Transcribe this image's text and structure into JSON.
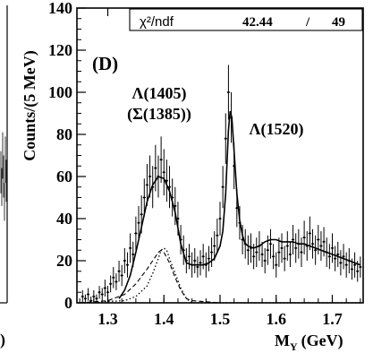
{
  "chart_data": {
    "type": "scatter",
    "panel_label": "(D)",
    "ylabel": "Counts/(5 MeV)",
    "xlabel": "M",
    "xlabel_sub": "Y",
    "xlabel_unit": "(GeV)",
    "xlim": [
      1.245,
      1.755
    ],
    "ylim": [
      0,
      140
    ],
    "x_ticks": [
      {
        "value": 1.3,
        "label": "1.3"
      },
      {
        "value": 1.4,
        "label": "1.4"
      },
      {
        "value": 1.5,
        "label": "1.5"
      },
      {
        "value": 1.6,
        "label": "1.6"
      },
      {
        "value": 1.7,
        "label": "1.7"
      }
    ],
    "y_ticks": [
      {
        "value": 0,
        "label": "0"
      },
      {
        "value": 20,
        "label": "20"
      },
      {
        "value": 40,
        "label": "40"
      },
      {
        "value": 60,
        "label": "60"
      },
      {
        "value": 80,
        "label": "80"
      },
      {
        "value": 100,
        "label": "100"
      },
      {
        "value": 120,
        "label": "120"
      },
      {
        "value": 140,
        "label": "140"
      }
    ],
    "stats_box": {
      "label": "χ²/ndf",
      "chi2": "42.44",
      "separator": "/",
      "ndf": "49"
    },
    "annotations": [
      {
        "text": "Λ(1405)",
        "x": 1.395,
        "y": 103
      },
      {
        "text": "(Σ(1385))",
        "x": 1.395,
        "y": 89
      },
      {
        "text": "Λ(1520)",
        "x": 1.605,
        "y": 82
      }
    ],
    "series": [
      {
        "style": "points-with-errors",
        "points": [
          [
            1.255,
            3,
            3
          ],
          [
            1.26,
            2,
            2
          ],
          [
            1.265,
            4,
            3
          ],
          [
            1.27,
            1,
            2
          ],
          [
            1.275,
            3,
            3
          ],
          [
            1.28,
            2,
            2
          ],
          [
            1.285,
            5,
            3
          ],
          [
            1.29,
            4,
            3
          ],
          [
            1.295,
            7,
            4
          ],
          [
            1.3,
            5,
            3
          ],
          [
            1.305,
            9,
            4
          ],
          [
            1.31,
            12,
            5
          ],
          [
            1.315,
            10,
            4
          ],
          [
            1.32,
            15,
            5
          ],
          [
            1.325,
            13,
            5
          ],
          [
            1.33,
            20,
            6
          ],
          [
            1.335,
            18,
            6
          ],
          [
            1.34,
            26,
            7
          ],
          [
            1.345,
            23,
            6
          ],
          [
            1.35,
            33,
            8
          ],
          [
            1.355,
            38,
            8
          ],
          [
            1.36,
            42,
            9
          ],
          [
            1.365,
            50,
            9
          ],
          [
            1.37,
            56,
            10
          ],
          [
            1.375,
            60,
            10
          ],
          [
            1.38,
            55,
            10
          ],
          [
            1.385,
            64,
            11
          ],
          [
            1.39,
            60,
            10
          ],
          [
            1.395,
            68,
            11
          ],
          [
            1.4,
            62,
            11
          ],
          [
            1.405,
            58,
            10
          ],
          [
            1.41,
            55,
            10
          ],
          [
            1.415,
            50,
            9
          ],
          [
            1.42,
            46,
            9
          ],
          [
            1.425,
            40,
            8
          ],
          [
            1.43,
            30,
            7
          ],
          [
            1.435,
            25,
            7
          ],
          [
            1.44,
            20,
            6
          ],
          [
            1.445,
            22,
            6
          ],
          [
            1.45,
            18,
            6
          ],
          [
            1.455,
            20,
            6
          ],
          [
            1.46,
            17,
            5
          ],
          [
            1.465,
            19,
            6
          ],
          [
            1.47,
            22,
            6
          ],
          [
            1.475,
            18,
            6
          ],
          [
            1.48,
            21,
            6
          ],
          [
            1.485,
            24,
            7
          ],
          [
            1.49,
            27,
            7
          ],
          [
            1.495,
            32,
            8
          ],
          [
            1.5,
            40,
            8
          ],
          [
            1.505,
            55,
            10
          ],
          [
            1.51,
            78,
            12
          ],
          [
            1.515,
            100,
            13
          ],
          [
            1.52,
            88,
            12
          ],
          [
            1.525,
            65,
            11
          ],
          [
            1.53,
            45,
            9
          ],
          [
            1.535,
            38,
            8
          ],
          [
            1.54,
            30,
            7
          ],
          [
            1.545,
            28,
            7
          ],
          [
            1.55,
            25,
            7
          ],
          [
            1.555,
            26,
            7
          ],
          [
            1.56,
            22,
            6
          ],
          [
            1.565,
            24,
            7
          ],
          [
            1.57,
            27,
            7
          ],
          [
            1.575,
            23,
            6
          ],
          [
            1.58,
            20,
            6
          ],
          [
            1.585,
            25,
            7
          ],
          [
            1.59,
            28,
            7
          ],
          [
            1.595,
            22,
            6
          ],
          [
            1.6,
            18,
            6
          ],
          [
            1.605,
            24,
            7
          ],
          [
            1.61,
            26,
            7
          ],
          [
            1.615,
            21,
            6
          ],
          [
            1.62,
            27,
            7
          ],
          [
            1.625,
            23,
            6
          ],
          [
            1.63,
            30,
            7
          ],
          [
            1.635,
            26,
            7
          ],
          [
            1.64,
            28,
            7
          ],
          [
            1.645,
            24,
            7
          ],
          [
            1.65,
            31,
            8
          ],
          [
            1.655,
            27,
            7
          ],
          [
            1.66,
            33,
            8
          ],
          [
            1.665,
            28,
            7
          ],
          [
            1.67,
            25,
            7
          ],
          [
            1.675,
            30,
            7
          ],
          [
            1.68,
            27,
            7
          ],
          [
            1.685,
            29,
            7
          ],
          [
            1.69,
            24,
            7
          ],
          [
            1.695,
            22,
            6
          ],
          [
            1.7,
            26,
            7
          ],
          [
            1.705,
            21,
            6
          ],
          [
            1.71,
            23,
            6
          ],
          [
            1.715,
            19,
            6
          ],
          [
            1.72,
            22,
            6
          ],
          [
            1.725,
            18,
            6
          ],
          [
            1.73,
            20,
            6
          ],
          [
            1.735,
            16,
            5
          ],
          [
            1.74,
            18,
            6
          ],
          [
            1.745,
            15,
            5
          ],
          [
            1.75,
            17,
            5
          ]
        ]
      },
      {
        "style": "solid-curve",
        "points": [
          [
            1.32,
            2
          ],
          [
            1.33,
            6
          ],
          [
            1.34,
            13
          ],
          [
            1.35,
            24
          ],
          [
            1.36,
            36
          ],
          [
            1.37,
            48
          ],
          [
            1.38,
            56
          ],
          [
            1.39,
            60
          ],
          [
            1.4,
            59
          ],
          [
            1.41,
            53
          ],
          [
            1.42,
            43
          ],
          [
            1.43,
            28
          ],
          [
            1.44,
            19
          ],
          [
            1.45,
            18
          ],
          [
            1.46,
            18
          ],
          [
            1.47,
            18
          ],
          [
            1.48,
            19
          ],
          [
            1.49,
            21
          ],
          [
            1.5,
            27
          ],
          [
            1.505,
            34
          ],
          [
            1.51,
            52
          ],
          [
            1.515,
            82
          ],
          [
            1.518,
            91
          ],
          [
            1.521,
            88
          ],
          [
            1.525,
            72
          ],
          [
            1.53,
            52
          ],
          [
            1.535,
            39
          ],
          [
            1.54,
            32
          ],
          [
            1.545,
            28
          ],
          [
            1.55,
            27
          ],
          [
            1.56,
            26
          ],
          [
            1.57,
            27
          ],
          [
            1.58,
            29
          ],
          [
            1.59,
            30
          ],
          [
            1.6,
            30
          ],
          [
            1.61,
            29
          ],
          [
            1.62,
            29
          ],
          [
            1.63,
            29
          ],
          [
            1.64,
            28
          ],
          [
            1.65,
            28
          ],
          [
            1.66,
            27
          ],
          [
            1.67,
            26
          ],
          [
            1.68,
            25
          ],
          [
            1.69,
            24
          ],
          [
            1.7,
            23
          ],
          [
            1.72,
            21
          ],
          [
            1.74,
            19
          ],
          [
            1.75,
            18
          ]
        ]
      },
      {
        "style": "dashed-curve",
        "points": [
          [
            1.25,
            0
          ],
          [
            1.3,
            1
          ],
          [
            1.33,
            4
          ],
          [
            1.35,
            9
          ],
          [
            1.37,
            16
          ],
          [
            1.38,
            20
          ],
          [
            1.39,
            24
          ],
          [
            1.395,
            25
          ],
          [
            1.4,
            24
          ],
          [
            1.41,
            19
          ],
          [
            1.42,
            12
          ],
          [
            1.43,
            6
          ],
          [
            1.44,
            2
          ],
          [
            1.45,
            1
          ],
          [
            1.5,
            0
          ],
          [
            1.75,
            0
          ]
        ]
      },
      {
        "style": "dotted-curve",
        "points": [
          [
            1.25,
            0
          ],
          [
            1.33,
            1
          ],
          [
            1.35,
            3
          ],
          [
            1.37,
            8
          ],
          [
            1.38,
            14
          ],
          [
            1.39,
            21
          ],
          [
            1.395,
            25
          ],
          [
            1.4,
            26
          ],
          [
            1.405,
            25
          ],
          [
            1.41,
            21
          ],
          [
            1.42,
            14
          ],
          [
            1.43,
            7
          ],
          [
            1.44,
            2
          ],
          [
            1.45,
            0
          ],
          [
            1.75,
            0
          ]
        ]
      }
    ],
    "left_panel_fragment": {
      "points": [
        [
          1.73,
          62,
          10
        ],
        [
          1.735,
          55,
          9
        ],
        [
          1.74,
          70,
          11
        ],
        [
          1.745,
          60,
          10
        ],
        [
          1.75,
          48,
          9
        ],
        [
          1.755,
          68,
          11
        ],
        [
          1.76,
          58,
          10
        ],
        [
          1.765,
          65,
          11
        ]
      ],
      "axis_label_fragment": ")"
    }
  }
}
